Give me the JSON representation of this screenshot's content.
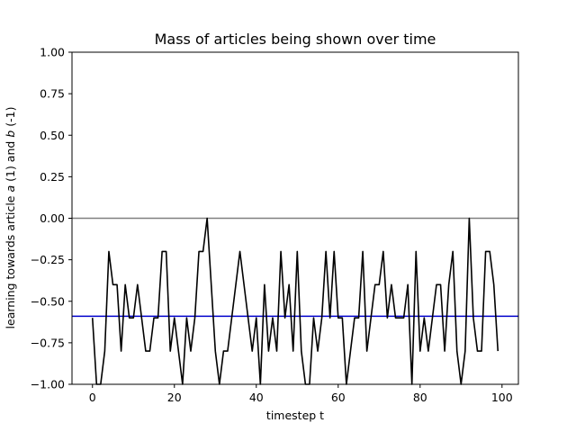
{
  "chart_data": {
    "type": "line",
    "title": "Mass of articles being shown over time",
    "xlabel": "timestep t",
    "ylabel_parts": [
      "learning towards article ",
      "a",
      " (1) and ",
      "b",
      " (-1)"
    ],
    "xlim": [
      -5,
      104
    ],
    "ylim": [
      -1.0,
      1.0
    ],
    "xticks": [
      0,
      20,
      40,
      60,
      80,
      100
    ],
    "xtick_labels": [
      "0",
      "20",
      "40",
      "60",
      "80",
      "100"
    ],
    "yticks": [
      -1.0,
      -0.75,
      -0.5,
      -0.25,
      0.0,
      0.25,
      0.5,
      0.75,
      1.0
    ],
    "ytick_labels": [
      "−1.00",
      "−0.75",
      "−0.50",
      "−0.25",
      "0.00",
      "0.25",
      "0.50",
      "0.75",
      "1.00"
    ],
    "grid": false,
    "legend": "none",
    "hlines": [
      {
        "y": 0.0,
        "color": "#808080"
      },
      {
        "y": -0.59,
        "color": "#0000cc"
      }
    ],
    "series": [
      {
        "color": "#000000",
        "x": [
          0,
          1,
          2,
          3,
          4,
          5,
          6,
          7,
          8,
          9,
          10,
          11,
          12,
          13,
          14,
          15,
          16,
          17,
          18,
          19,
          20,
          21,
          22,
          23,
          24,
          25,
          26,
          27,
          28,
          29,
          30,
          31,
          32,
          33,
          34,
          35,
          36,
          37,
          38,
          39,
          40,
          41,
          42,
          43,
          44,
          45,
          46,
          47,
          48,
          49,
          50,
          51,
          52,
          53,
          54,
          55,
          56,
          57,
          58,
          59,
          60,
          61,
          62,
          63,
          64,
          65,
          66,
          67,
          68,
          69,
          70,
          71,
          72,
          73,
          74,
          75,
          76,
          77,
          78,
          79,
          80,
          81,
          82,
          83,
          84,
          85,
          86,
          87,
          88,
          89,
          90,
          91,
          92,
          93,
          94,
          95,
          96,
          97,
          98,
          99
        ],
        "y": [
          -0.6,
          -1.0,
          -1.0,
          -0.8,
          -0.2,
          -0.4,
          -0.4,
          -0.8,
          -0.4,
          -0.6,
          -0.6,
          -0.4,
          -0.6,
          -0.8,
          -0.8,
          -0.6,
          -0.6,
          -0.2,
          -0.2,
          -0.8,
          -0.6,
          -0.8,
          -1.0,
          -0.6,
          -0.8,
          -0.6,
          -0.2,
          -0.2,
          0.0,
          -0.4,
          -0.8,
          -1.0,
          -0.8,
          -0.8,
          -0.6,
          -0.4,
          -0.2,
          -0.4,
          -0.6,
          -0.8,
          -0.6,
          -1.0,
          -0.4,
          -0.8,
          -0.6,
          -0.8,
          -0.2,
          -0.6,
          -0.4,
          -0.8,
          -0.2,
          -0.8,
          -1.0,
          -1.0,
          -0.6,
          -0.8,
          -0.6,
          -0.2,
          -0.6,
          -0.2,
          -0.6,
          -0.6,
          -1.0,
          -0.8,
          -0.6,
          -0.6,
          -0.2,
          -0.8,
          -0.6,
          -0.4,
          -0.4,
          -0.2,
          -0.6,
          -0.4,
          -0.6,
          -0.6,
          -0.6,
          -0.4,
          -1.0,
          -0.2,
          -0.8,
          -0.6,
          -0.8,
          -0.6,
          -0.4,
          -0.4,
          -0.8,
          -0.4,
          -0.2,
          -0.8,
          -1.0,
          -0.8,
          0.0,
          -0.6,
          -0.8,
          -0.8,
          -0.2,
          -0.2,
          -0.4,
          -0.8
        ]
      }
    ]
  }
}
